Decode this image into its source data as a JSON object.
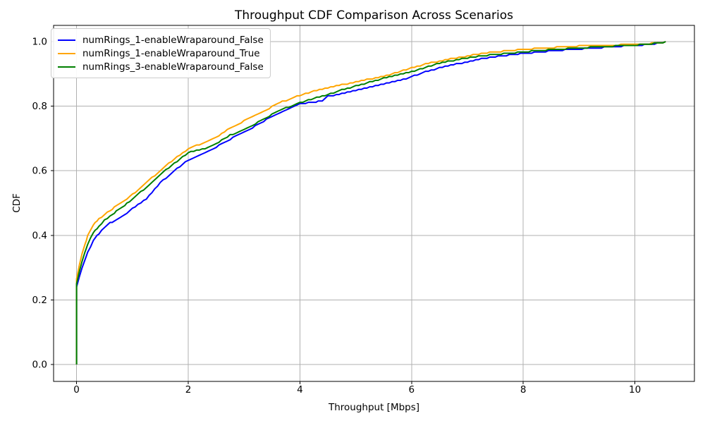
{
  "chart_data": {
    "type": "line",
    "subtype": "empirical-cdf",
    "title": "Throughput CDF Comparison Across Scenarios",
    "xlabel": "Throughput [Mbps]",
    "ylabel": "CDF",
    "xlim": [
      -0.41,
      11.07
    ],
    "ylim": [
      -0.052,
      1.052
    ],
    "x_ticks": [
      0,
      2,
      4,
      6,
      8,
      10
    ],
    "x_tick_labels": [
      "0",
      "2",
      "4",
      "6",
      "8",
      "10"
    ],
    "y_ticks": [
      0.0,
      0.2,
      0.4,
      0.6,
      0.8,
      1.0
    ],
    "y_tick_labels": [
      "0.0",
      "0.2",
      "0.4",
      "0.6",
      "0.8",
      "1.0"
    ],
    "grid": true,
    "grid_color": "#b0b0b0",
    "legend_position": "upper-left",
    "series": [
      {
        "name": "numRings_1-enableWraparound_False",
        "color": "#0000ff",
        "points": [
          [
            0,
            0
          ],
          [
            0,
            0.24
          ],
          [
            0.05,
            0.275
          ],
          [
            0.1,
            0.3
          ],
          [
            0.15,
            0.325
          ],
          [
            0.2,
            0.35
          ],
          [
            0.3,
            0.385
          ],
          [
            0.4,
            0.408
          ],
          [
            0.5,
            0.425
          ],
          [
            0.6,
            0.44
          ],
          [
            0.75,
            0.455
          ],
          [
            0.9,
            0.472
          ],
          [
            1,
            0.485
          ],
          [
            1.25,
            0.515
          ],
          [
            1.5,
            0.565
          ],
          [
            1.75,
            0.602
          ],
          [
            2,
            0.635
          ],
          [
            2.25,
            0.655
          ],
          [
            2.5,
            0.675
          ],
          [
            2.75,
            0.7
          ],
          [
            3,
            0.72
          ],
          [
            3.25,
            0.745
          ],
          [
            3.5,
            0.77
          ],
          [
            3.75,
            0.79
          ],
          [
            4,
            0.808
          ],
          [
            4.25,
            0.815
          ],
          [
            4.4,
            0.818
          ],
          [
            4.5,
            0.832
          ],
          [
            4.75,
            0.84
          ],
          [
            5,
            0.85
          ],
          [
            5.25,
            0.86
          ],
          [
            5.5,
            0.87
          ],
          [
            5.75,
            0.88
          ],
          [
            6,
            0.893
          ],
          [
            6.25,
            0.908
          ],
          [
            6.5,
            0.92
          ],
          [
            6.75,
            0.93
          ],
          [
            7,
            0.94
          ],
          [
            7.25,
            0.95
          ],
          [
            7.5,
            0.955
          ],
          [
            7.75,
            0.961
          ],
          [
            8,
            0.965
          ],
          [
            8.5,
            0.973
          ],
          [
            9,
            0.979
          ],
          [
            9.5,
            0.985
          ],
          [
            10,
            0.99
          ],
          [
            10.3,
            0.994
          ],
          [
            10.55,
            1.0
          ]
        ]
      },
      {
        "name": "numRings_1-enableWraparound_True",
        "color": "#ffa500",
        "points": [
          [
            0,
            0
          ],
          [
            0,
            0.265
          ],
          [
            0.05,
            0.31
          ],
          [
            0.1,
            0.345
          ],
          [
            0.15,
            0.375
          ],
          [
            0.2,
            0.4
          ],
          [
            0.3,
            0.435
          ],
          [
            0.4,
            0.452
          ],
          [
            0.5,
            0.466
          ],
          [
            0.6,
            0.479
          ],
          [
            0.75,
            0.497
          ],
          [
            0.9,
            0.515
          ],
          [
            1,
            0.528
          ],
          [
            1.25,
            0.565
          ],
          [
            1.5,
            0.603
          ],
          [
            1.75,
            0.638
          ],
          [
            2,
            0.67
          ],
          [
            2.25,
            0.687
          ],
          [
            2.5,
            0.706
          ],
          [
            2.75,
            0.735
          ],
          [
            3,
            0.756
          ],
          [
            3.25,
            0.776
          ],
          [
            3.5,
            0.8
          ],
          [
            3.65,
            0.815
          ],
          [
            3.75,
            0.82
          ],
          [
            4,
            0.835
          ],
          [
            4.25,
            0.849
          ],
          [
            4.5,
            0.858
          ],
          [
            4.75,
            0.868
          ],
          [
            5,
            0.876
          ],
          [
            5.25,
            0.886
          ],
          [
            5.5,
            0.895
          ],
          [
            5.75,
            0.907
          ],
          [
            6,
            0.92
          ],
          [
            6.25,
            0.932
          ],
          [
            6.5,
            0.942
          ],
          [
            6.75,
            0.95
          ],
          [
            7,
            0.957
          ],
          [
            7.25,
            0.965
          ],
          [
            7.5,
            0.97
          ],
          [
            7.75,
            0.974
          ],
          [
            8,
            0.978
          ],
          [
            8.5,
            0.983
          ],
          [
            9,
            0.988
          ],
          [
            9.5,
            0.991
          ],
          [
            10,
            0.993
          ],
          [
            10.3,
            0.996
          ],
          [
            10.55,
            1.0
          ]
        ]
      },
      {
        "name": "numRings_3-enableWraparound_False",
        "color": "#008000",
        "points": [
          [
            0,
            0
          ],
          [
            0,
            0.25
          ],
          [
            0.05,
            0.29
          ],
          [
            0.1,
            0.32
          ],
          [
            0.15,
            0.35
          ],
          [
            0.2,
            0.375
          ],
          [
            0.3,
            0.41
          ],
          [
            0.4,
            0.43
          ],
          [
            0.5,
            0.448
          ],
          [
            0.6,
            0.462
          ],
          [
            0.75,
            0.482
          ],
          [
            0.9,
            0.5
          ],
          [
            1,
            0.515
          ],
          [
            1.25,
            0.55
          ],
          [
            1.5,
            0.59
          ],
          [
            1.75,
            0.625
          ],
          [
            2,
            0.658
          ],
          [
            2.25,
            0.668
          ],
          [
            2.5,
            0.686
          ],
          [
            2.75,
            0.712
          ],
          [
            3,
            0.73
          ],
          [
            3.25,
            0.752
          ],
          [
            3.5,
            0.776
          ],
          [
            3.75,
            0.796
          ],
          [
            4,
            0.813
          ],
          [
            4.25,
            0.826
          ],
          [
            4.5,
            0.838
          ],
          [
            4.75,
            0.852
          ],
          [
            5,
            0.864
          ],
          [
            5.25,
            0.877
          ],
          [
            5.5,
            0.888
          ],
          [
            5.75,
            0.898
          ],
          [
            6,
            0.908
          ],
          [
            6.25,
            0.922
          ],
          [
            6.5,
            0.935
          ],
          [
            6.75,
            0.944
          ],
          [
            7,
            0.951
          ],
          [
            7.25,
            0.958
          ],
          [
            7.5,
            0.962
          ],
          [
            7.75,
            0.966
          ],
          [
            8,
            0.97
          ],
          [
            8.5,
            0.977
          ],
          [
            9,
            0.982
          ],
          [
            9.5,
            0.987
          ],
          [
            10,
            0.991
          ],
          [
            10.3,
            0.995
          ],
          [
            10.55,
            1.0
          ]
        ]
      }
    ]
  }
}
